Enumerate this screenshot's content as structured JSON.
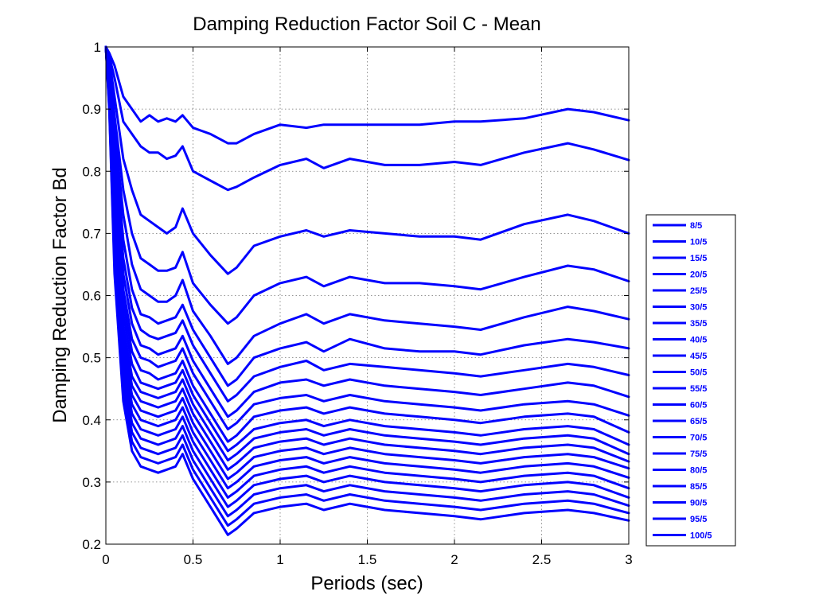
{
  "chart_data": {
    "type": "line",
    "title": "Damping Reduction Factor Soil C - Mean",
    "xlabel": "Periods (sec)",
    "ylabel": "Damping Reduction Factor Bd",
    "xlim": [
      0,
      3
    ],
    "ylim": [
      0.2,
      1
    ],
    "xticks": [
      "0",
      "0.5",
      "1",
      "1.5",
      "2",
      "2.5",
      "3"
    ],
    "yticks": [
      "0.2",
      "0.3",
      "0.4",
      "0.5",
      "0.6",
      "0.7",
      "0.8",
      "0.9",
      "1"
    ],
    "grid": true,
    "legend_position": "right",
    "line_color": "#0000ff",
    "x": [
      0,
      0.02,
      0.05,
      0.1,
      0.15,
      0.2,
      0.25,
      0.3,
      0.35,
      0.4,
      0.44,
      0.5,
      0.6,
      0.7,
      0.75,
      0.85,
      1.0,
      1.15,
      1.25,
      1.4,
      1.6,
      1.8,
      2.0,
      2.15,
      2.4,
      2.65,
      2.8,
      3.0
    ],
    "series": [
      {
        "name": "8/5",
        "values": [
          1.0,
          0.99,
          0.97,
          0.92,
          0.9,
          0.88,
          0.89,
          0.88,
          0.885,
          0.88,
          0.89,
          0.87,
          0.86,
          0.845,
          0.845,
          0.86,
          0.875,
          0.87,
          0.875,
          0.875,
          0.875,
          0.875,
          0.88,
          0.88,
          0.885,
          0.9,
          0.895,
          0.882
        ]
      },
      {
        "name": "10/5",
        "values": [
          1.0,
          0.985,
          0.95,
          0.88,
          0.86,
          0.84,
          0.83,
          0.83,
          0.82,
          0.825,
          0.84,
          0.8,
          0.785,
          0.77,
          0.775,
          0.79,
          0.81,
          0.82,
          0.805,
          0.82,
          0.81,
          0.81,
          0.815,
          0.81,
          0.83,
          0.845,
          0.835,
          0.818
        ]
      },
      {
        "name": "15/5",
        "values": [
          1.0,
          0.98,
          0.92,
          0.82,
          0.77,
          0.73,
          0.72,
          0.71,
          0.7,
          0.71,
          0.74,
          0.7,
          0.665,
          0.635,
          0.645,
          0.68,
          0.695,
          0.705,
          0.695,
          0.705,
          0.7,
          0.695,
          0.695,
          0.69,
          0.715,
          0.73,
          0.72,
          0.7
        ]
      },
      {
        "name": "20/5",
        "values": [
          1.0,
          0.975,
          0.89,
          0.77,
          0.7,
          0.66,
          0.65,
          0.64,
          0.64,
          0.645,
          0.67,
          0.62,
          0.585,
          0.555,
          0.565,
          0.6,
          0.62,
          0.63,
          0.615,
          0.63,
          0.62,
          0.62,
          0.615,
          0.61,
          0.63,
          0.648,
          0.642,
          0.623
        ]
      },
      {
        "name": "25/5",
        "values": [
          1.0,
          0.97,
          0.87,
          0.73,
          0.65,
          0.61,
          0.6,
          0.59,
          0.59,
          0.6,
          0.625,
          0.575,
          0.535,
          0.49,
          0.5,
          0.535,
          0.555,
          0.57,
          0.555,
          0.57,
          0.56,
          0.555,
          0.55,
          0.545,
          0.565,
          0.582,
          0.575,
          0.562
        ]
      },
      {
        "name": "30/5",
        "values": [
          1.0,
          0.965,
          0.85,
          0.69,
          0.61,
          0.57,
          0.565,
          0.555,
          0.56,
          0.565,
          0.585,
          0.545,
          0.5,
          0.455,
          0.465,
          0.5,
          0.515,
          0.525,
          0.51,
          0.53,
          0.515,
          0.51,
          0.51,
          0.505,
          0.52,
          0.53,
          0.525,
          0.515
        ]
      },
      {
        "name": "35/5",
        "values": [
          1.0,
          0.96,
          0.83,
          0.66,
          0.58,
          0.545,
          0.535,
          0.53,
          0.535,
          0.54,
          0.56,
          0.52,
          0.475,
          0.43,
          0.44,
          0.47,
          0.485,
          0.495,
          0.48,
          0.49,
          0.485,
          0.48,
          0.475,
          0.47,
          0.48,
          0.49,
          0.485,
          0.472
        ]
      },
      {
        "name": "40/5",
        "values": [
          1.0,
          0.955,
          0.815,
          0.635,
          0.555,
          0.52,
          0.515,
          0.505,
          0.51,
          0.515,
          0.535,
          0.495,
          0.45,
          0.405,
          0.415,
          0.445,
          0.46,
          0.465,
          0.455,
          0.465,
          0.455,
          0.45,
          0.445,
          0.44,
          0.45,
          0.46,
          0.455,
          0.437
        ]
      },
      {
        "name": "45/5",
        "values": [
          1.0,
          0.95,
          0.8,
          0.61,
          0.53,
          0.5,
          0.495,
          0.485,
          0.49,
          0.495,
          0.515,
          0.475,
          0.43,
          0.385,
          0.395,
          0.425,
          0.435,
          0.44,
          0.43,
          0.44,
          0.43,
          0.425,
          0.42,
          0.415,
          0.425,
          0.43,
          0.425,
          0.407
        ]
      },
      {
        "name": "50/5",
        "values": [
          1.0,
          0.945,
          0.785,
          0.59,
          0.51,
          0.48,
          0.475,
          0.465,
          0.47,
          0.475,
          0.495,
          0.455,
          0.41,
          0.365,
          0.375,
          0.405,
          0.415,
          0.42,
          0.41,
          0.42,
          0.41,
          0.405,
          0.4,
          0.395,
          0.405,
          0.41,
          0.405,
          0.38
        ]
      },
      {
        "name": "55/5",
        "values": [
          1.0,
          0.94,
          0.77,
          0.57,
          0.49,
          0.46,
          0.455,
          0.45,
          0.455,
          0.46,
          0.48,
          0.44,
          0.395,
          0.35,
          0.36,
          0.385,
          0.395,
          0.4,
          0.39,
          0.4,
          0.39,
          0.385,
          0.38,
          0.375,
          0.385,
          0.39,
          0.385,
          0.36
        ]
      },
      {
        "name": "60/5",
        "values": [
          1.0,
          0.935,
          0.755,
          0.55,
          0.47,
          0.445,
          0.44,
          0.435,
          0.44,
          0.445,
          0.465,
          0.425,
          0.38,
          0.335,
          0.345,
          0.37,
          0.38,
          0.385,
          0.375,
          0.385,
          0.375,
          0.37,
          0.365,
          0.36,
          0.37,
          0.375,
          0.37,
          0.345
        ]
      },
      {
        "name": "65/5",
        "values": [
          1.0,
          0.93,
          0.74,
          0.535,
          0.455,
          0.43,
          0.425,
          0.42,
          0.425,
          0.43,
          0.45,
          0.41,
          0.365,
          0.32,
          0.33,
          0.355,
          0.365,
          0.37,
          0.36,
          0.37,
          0.36,
          0.355,
          0.35,
          0.345,
          0.355,
          0.36,
          0.355,
          0.333
        ]
      },
      {
        "name": "70/5",
        "values": [
          1.0,
          0.925,
          0.725,
          0.52,
          0.44,
          0.415,
          0.41,
          0.405,
          0.41,
          0.415,
          0.435,
          0.395,
          0.35,
          0.305,
          0.315,
          0.34,
          0.35,
          0.355,
          0.345,
          0.355,
          0.345,
          0.34,
          0.335,
          0.33,
          0.34,
          0.345,
          0.34,
          0.322
        ]
      },
      {
        "name": "75/5",
        "values": [
          1.0,
          0.92,
          0.71,
          0.505,
          0.425,
          0.4,
          0.395,
          0.39,
          0.395,
          0.4,
          0.42,
          0.38,
          0.335,
          0.29,
          0.3,
          0.325,
          0.335,
          0.34,
          0.33,
          0.34,
          0.33,
          0.325,
          0.32,
          0.315,
          0.325,
          0.33,
          0.325,
          0.307
        ]
      },
      {
        "name": "80/5",
        "values": [
          1.0,
          0.915,
          0.695,
          0.49,
          0.41,
          0.385,
          0.38,
          0.375,
          0.38,
          0.385,
          0.405,
          0.365,
          0.32,
          0.275,
          0.285,
          0.31,
          0.32,
          0.325,
          0.315,
          0.325,
          0.315,
          0.31,
          0.305,
          0.3,
          0.31,
          0.315,
          0.31,
          0.29
        ]
      },
      {
        "name": "85/5",
        "values": [
          1.0,
          0.91,
          0.68,
          0.475,
          0.395,
          0.37,
          0.365,
          0.36,
          0.365,
          0.37,
          0.39,
          0.35,
          0.305,
          0.26,
          0.27,
          0.295,
          0.305,
          0.31,
          0.3,
          0.31,
          0.3,
          0.295,
          0.29,
          0.285,
          0.295,
          0.3,
          0.295,
          0.275
        ]
      },
      {
        "name": "90/5",
        "values": [
          1.0,
          0.905,
          0.665,
          0.46,
          0.38,
          0.355,
          0.35,
          0.345,
          0.35,
          0.355,
          0.375,
          0.335,
          0.29,
          0.245,
          0.255,
          0.28,
          0.29,
          0.295,
          0.285,
          0.295,
          0.285,
          0.28,
          0.275,
          0.27,
          0.28,
          0.285,
          0.28,
          0.262
        ]
      },
      {
        "name": "95/5",
        "values": [
          1.0,
          0.9,
          0.65,
          0.445,
          0.365,
          0.34,
          0.335,
          0.33,
          0.335,
          0.34,
          0.36,
          0.32,
          0.275,
          0.23,
          0.24,
          0.265,
          0.275,
          0.28,
          0.27,
          0.28,
          0.27,
          0.265,
          0.26,
          0.255,
          0.265,
          0.27,
          0.265,
          0.25
        ]
      },
      {
        "name": "100/5",
        "values": [
          1.0,
          0.895,
          0.635,
          0.43,
          0.35,
          0.325,
          0.32,
          0.315,
          0.32,
          0.325,
          0.345,
          0.305,
          0.26,
          0.215,
          0.225,
          0.25,
          0.26,
          0.265,
          0.255,
          0.265,
          0.255,
          0.25,
          0.245,
          0.24,
          0.25,
          0.255,
          0.25,
          0.238
        ]
      }
    ]
  }
}
